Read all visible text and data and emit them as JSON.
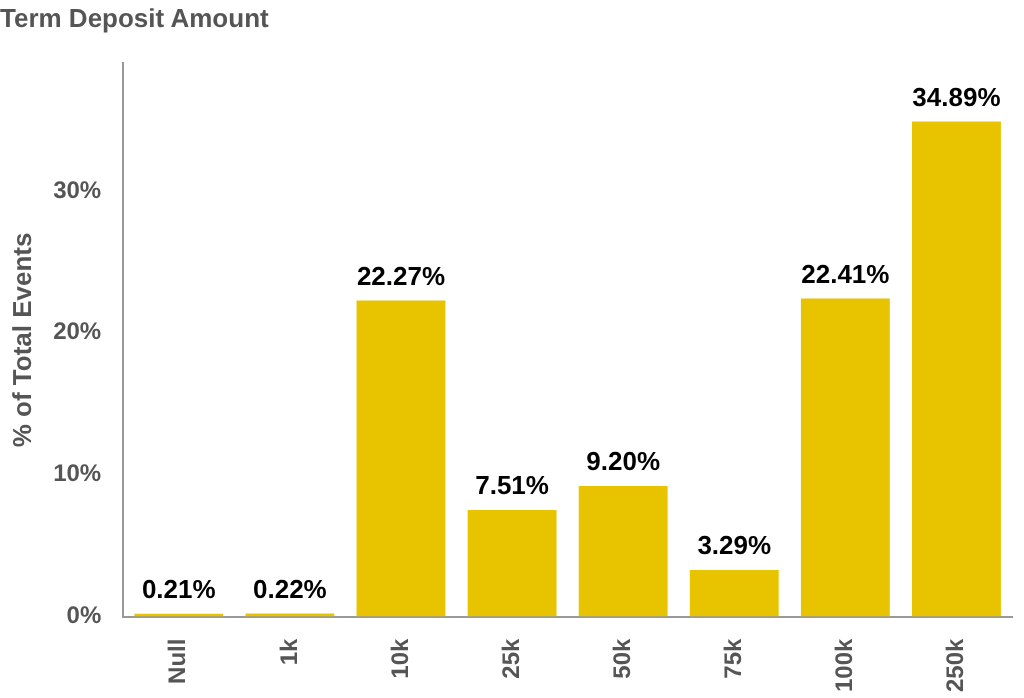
{
  "chart_data": {
    "type": "bar",
    "title": "Term Deposit Amount",
    "ylabel": "% of Total Events",
    "categories": [
      "Null",
      "1k",
      "10k",
      "25k",
      "50k",
      "75k",
      "100k",
      "250k"
    ],
    "values": [
      0.21,
      0.22,
      22.27,
      7.51,
      9.2,
      3.29,
      22.41,
      34.89
    ],
    "value_labels": [
      "0.21%",
      "0.22%",
      "22.27%",
      "7.51%",
      "9.20%",
      "3.29%",
      "22.41%",
      "34.89%"
    ],
    "color": "#e8c300",
    "ylim": [
      0,
      39
    ],
    "yticks": [
      {
        "value": 0,
        "label": "0%"
      },
      {
        "value": 10,
        "label": "10%"
      },
      {
        "value": 20,
        "label": "20%"
      },
      {
        "value": 30,
        "label": "30%"
      }
    ],
    "grid": false,
    "legend": false
  }
}
